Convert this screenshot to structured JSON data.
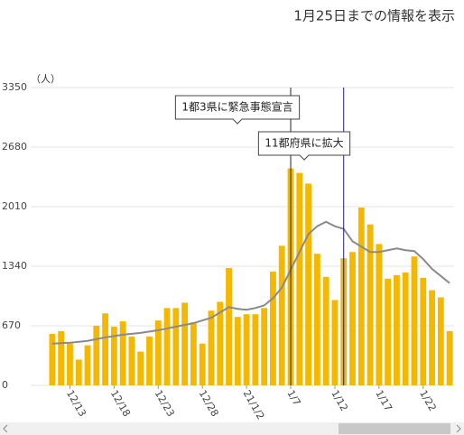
{
  "chart_data": {
    "type": "bar",
    "title": "1月25日までの情報を表示",
    "y_label": "（人）",
    "categories": [
      null,
      null,
      "12/13",
      null,
      null,
      null,
      null,
      "12/18",
      null,
      null,
      null,
      null,
      "12/23",
      null,
      null,
      null,
      null,
      "12/28",
      null,
      null,
      null,
      null,
      "21/1/2",
      null,
      null,
      null,
      null,
      "1/7",
      null,
      null,
      null,
      null,
      "1/12",
      null,
      null,
      null,
      null,
      "1/17",
      null,
      null,
      null,
      null,
      "1/22",
      null,
      null,
      null
    ],
    "series": [
      {
        "type": "bar",
        "color": "#f5b800",
        "values": [
          580,
          610,
          470,
          290,
          450,
          670,
          810,
          660,
          720,
          550,
          380,
          550,
          730,
          870,
          870,
          930,
          710,
          470,
          840,
          940,
          1320,
          770,
          800,
          800,
          870,
          1280,
          1570,
          2440,
          2390,
          2270,
          1480,
          1220,
          960,
          1430,
          1500,
          2000,
          1810,
          1590,
          1200,
          1240,
          1270,
          1450,
          1210,
          1070,
          990,
          610
        ]
      },
      {
        "type": "line",
        "color": "#8a8a8a",
        "values": [
          470,
          475,
          480,
          490,
          500,
          520,
          540,
          555,
          570,
          580,
          590,
          605,
          620,
          640,
          660,
          680,
          700,
          730,
          760,
          820,
          880,
          860,
          850,
          870,
          900,
          980,
          1100,
          1300,
          1500,
          1700,
          1790,
          1840,
          1790,
          1760,
          1620,
          1560,
          1500,
          1500,
          1520,
          1540,
          1520,
          1510,
          1420,
          1310,
          1230,
          1150
        ]
      }
    ],
    "annotations": [
      {
        "text": "1都3県に緊急事態宣言",
        "category_index": 27,
        "color": "#222222"
      },
      {
        "text": "11都府県に拡大",
        "category_index": 33,
        "color": "#1a1a8c"
      }
    ],
    "ylim": [
      0,
      3350
    ],
    "yticks": [
      0,
      670,
      1340,
      2010,
      2680,
      3350
    ],
    "grid": true
  }
}
